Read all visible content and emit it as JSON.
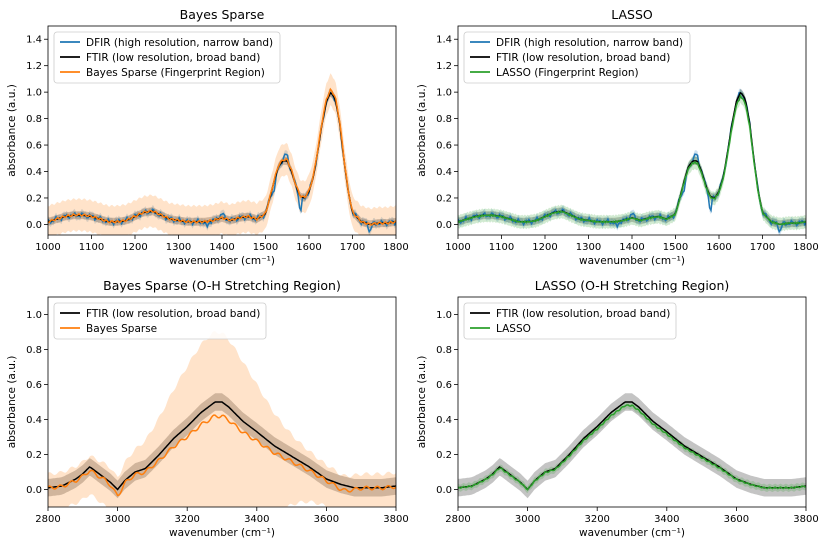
{
  "chart_data": [
    {
      "type": "line",
      "title": "Bayes Sparse",
      "xlabel": "wavenumber (cm⁻¹)",
      "ylabel": "absorbance (a.u.)",
      "xlim": [
        1000,
        1800
      ],
      "ylim": [
        -0.08,
        1.5
      ],
      "xticks": [
        1000,
        1100,
        1200,
        1300,
        1400,
        1500,
        1600,
        1700,
        1800
      ],
      "yticks": [
        0.0,
        0.2,
        0.4,
        0.6,
        0.8,
        1.0,
        1.2,
        1.4
      ],
      "legend_position": "top-left",
      "series": [
        {
          "name": "DFIR (high resolution, narrow band)",
          "color": "#1f77b4",
          "kind": "dfir",
          "band": 0.03,
          "band_color": "#1f77b4"
        },
        {
          "name": "FTIR (low resolution, broad band)",
          "color": "#000000",
          "kind": "ftir",
          "band": 0.03,
          "band_color": "#555555"
        },
        {
          "name": "Bayes Sparse (Fingerprint Region)",
          "color": "#ff7f0e",
          "kind": "fit",
          "band": 0.12,
          "band_color": "#ff7f0e"
        }
      ]
    },
    {
      "type": "line",
      "title": "LASSO",
      "xlabel": "wavenumber (cm⁻¹)",
      "ylabel": "absorbance (a.u.)",
      "xlim": [
        1000,
        1800
      ],
      "ylim": [
        -0.08,
        1.5
      ],
      "xticks": [
        1000,
        1100,
        1200,
        1300,
        1400,
        1500,
        1600,
        1700,
        1800
      ],
      "yticks": [
        0.0,
        0.2,
        0.4,
        0.6,
        0.8,
        1.0,
        1.2,
        1.4
      ],
      "legend_position": "top-left",
      "series": [
        {
          "name": "DFIR (high resolution, narrow band)",
          "color": "#1f77b4",
          "kind": "dfir",
          "band": 0.03,
          "band_color": "#1f77b4"
        },
        {
          "name": "FTIR (low resolution, broad band)",
          "color": "#000000",
          "kind": "ftir",
          "band": 0.03,
          "band_color": "#555555"
        },
        {
          "name": "LASSO (Fingerprint Region)",
          "color": "#2ca02c",
          "kind": "fit",
          "band": 0.05,
          "band_color": "#2ca02c"
        }
      ]
    },
    {
      "type": "line",
      "title": "Bayes Sparse (O-H Stretching Region)",
      "xlabel": "wavenumber (cm⁻¹)",
      "ylabel": "absorbance (a.u.)",
      "xlim": [
        2800,
        3800
      ],
      "ylim": [
        -0.1,
        1.1
      ],
      "xticks": [
        2800,
        3000,
        3200,
        3400,
        3600,
        3800
      ],
      "yticks": [
        0.0,
        0.2,
        0.4,
        0.6,
        0.8,
        1.0
      ],
      "legend_position": "top-left",
      "series": [
        {
          "name": "FTIR (low resolution, broad band)",
          "color": "#000000",
          "kind": "ftir",
          "band": 0.05,
          "band_color": "#555555"
        },
        {
          "name": "Bayes Sparse",
          "color": "#ff7f0e",
          "kind": "fit",
          "band": 0.3,
          "band_color": "#ff7f0e"
        }
      ]
    },
    {
      "type": "line",
      "title": "LASSO (O-H Stretching Region)",
      "xlabel": "wavenumber (cm⁻¹)",
      "ylabel": "absorbance (a.u.)",
      "xlim": [
        2800,
        3800
      ],
      "ylim": [
        -0.1,
        1.1
      ],
      "xticks": [
        2800,
        3000,
        3200,
        3400,
        3600,
        3800
      ],
      "yticks": [
        0.0,
        0.2,
        0.4,
        0.6,
        0.8,
        1.0
      ],
      "legend_position": "top-left",
      "series": [
        {
          "name": "FTIR (low resolution, broad band)",
          "color": "#000000",
          "kind": "ftir",
          "band": 0.05,
          "band_color": "#555555"
        },
        {
          "name": "LASSO",
          "color": "#2ca02c",
          "kind": "fit",
          "band": 0.02,
          "band_color": "#2ca02c"
        }
      ]
    }
  ],
  "ftir_fingerprint": {
    "x": [
      1000,
      1020,
      1040,
      1060,
      1080,
      1100,
      1120,
      1140,
      1160,
      1180,
      1200,
      1220,
      1240,
      1260,
      1280,
      1300,
      1320,
      1340,
      1360,
      1380,
      1400,
      1410,
      1420,
      1440,
      1460,
      1480,
      1500,
      1510,
      1520,
      1530,
      1540,
      1550,
      1560,
      1570,
      1580,
      1590,
      1600,
      1610,
      1620,
      1630,
      1640,
      1650,
      1660,
      1670,
      1680,
      1690,
      1700,
      1720,
      1740,
      1760,
      1780,
      1800
    ],
    "y": [
      0.02,
      0.04,
      0.06,
      0.07,
      0.07,
      0.06,
      0.04,
      0.02,
      0.02,
      0.03,
      0.06,
      0.09,
      0.1,
      0.07,
      0.04,
      0.03,
      0.02,
      0.02,
      0.02,
      0.03,
      0.05,
      0.04,
      0.03,
      0.05,
      0.06,
      0.04,
      0.08,
      0.2,
      0.33,
      0.44,
      0.48,
      0.48,
      0.4,
      0.29,
      0.21,
      0.2,
      0.25,
      0.36,
      0.55,
      0.76,
      0.93,
      1.0,
      0.95,
      0.78,
      0.5,
      0.25,
      0.09,
      0.02,
      0.0,
      0.01,
      0.01,
      0.02
    ]
  },
  "ftir_oh": {
    "x": [
      2800,
      2840,
      2880,
      2900,
      2920,
      2940,
      2960,
      2980,
      3000,
      3020,
      3050,
      3080,
      3120,
      3160,
      3200,
      3240,
      3280,
      3300,
      3320,
      3360,
      3400,
      3450,
      3500,
      3550,
      3600,
      3640,
      3680,
      3720,
      3760,
      3800
    ],
    "y": [
      0.01,
      0.02,
      0.06,
      0.09,
      0.13,
      0.1,
      0.07,
      0.04,
      0.0,
      0.05,
      0.1,
      0.12,
      0.2,
      0.29,
      0.36,
      0.44,
      0.5,
      0.5,
      0.47,
      0.39,
      0.33,
      0.25,
      0.19,
      0.13,
      0.06,
      0.03,
      0.01,
      0.01,
      0.01,
      0.02
    ]
  }
}
